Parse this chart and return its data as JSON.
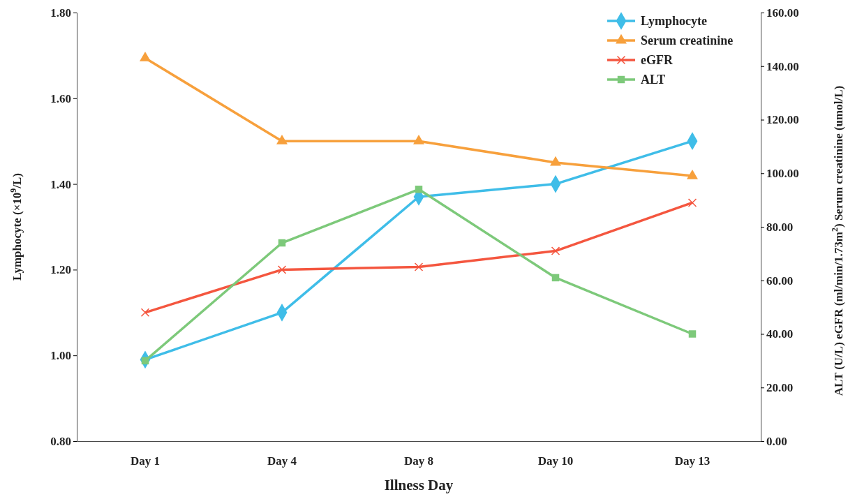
{
  "chart_data": {
    "type": "line",
    "xlabel": "Illness Day",
    "ylabel": "Lymphocyte (×10$^{9}$/L)",
    "y2label": "ALT (U/L)    eGFR (ml/min/1.73m$^{2}$)    Serum creatinine (umol/L)",
    "categories": [
      "Day 1",
      "Day 4",
      "Day 8",
      "Day 10",
      "Day 13"
    ],
    "ylim": [
      0.8,
      1.8
    ],
    "yticks": [
      {
        "value": 0.8,
        "label": "0.80"
      },
      {
        "value": 1.0,
        "label": "1.00"
      },
      {
        "value": 1.2,
        "label": "1.20"
      },
      {
        "value": 1.4,
        "label": "1.40"
      },
      {
        "value": 1.6,
        "label": "1.60"
      },
      {
        "value": 1.8,
        "label": "1.80"
      }
    ],
    "y2lim": [
      0,
      160
    ],
    "y2ticks": [
      {
        "value": 0,
        "label": "0.00"
      },
      {
        "value": 20,
        "label": "20.00"
      },
      {
        "value": 40,
        "label": "40.00"
      },
      {
        "value": 60,
        "label": "60.00"
      },
      {
        "value": 80,
        "label": "80.00"
      },
      {
        "value": 100,
        "label": "100.00"
      },
      {
        "value": 120,
        "label": "120.00"
      },
      {
        "value": 140,
        "label": "140.00"
      },
      {
        "value": 160,
        "label": "160.00"
      }
    ],
    "grid": false,
    "legend": "top right",
    "line_style": "solid",
    "series": [
      {
        "name": "Lymphocyte",
        "color": "#3fbde8",
        "marker": "diamond",
        "values": [
          0.99,
          1.1,
          1.37,
          1.4,
          1.5
        ]
      },
      {
        "name": "Serum creatinine",
        "color": "#f7a03c",
        "marker": "triangle",
        "axis": "y2",
        "values": [
          143,
          112,
          112,
          104,
          99
        ]
      },
      {
        "name": "eGFR",
        "color": "#f4563f",
        "marker": "cross",
        "axis": "y2",
        "values": [
          48,
          64,
          65,
          71,
          89
        ]
      },
      {
        "name": "ALT",
        "color": "#7dc97a",
        "marker": "square",
        "axis": "y2",
        "values": [
          30,
          74,
          94,
          61,
          40
        ]
      }
    ]
  }
}
